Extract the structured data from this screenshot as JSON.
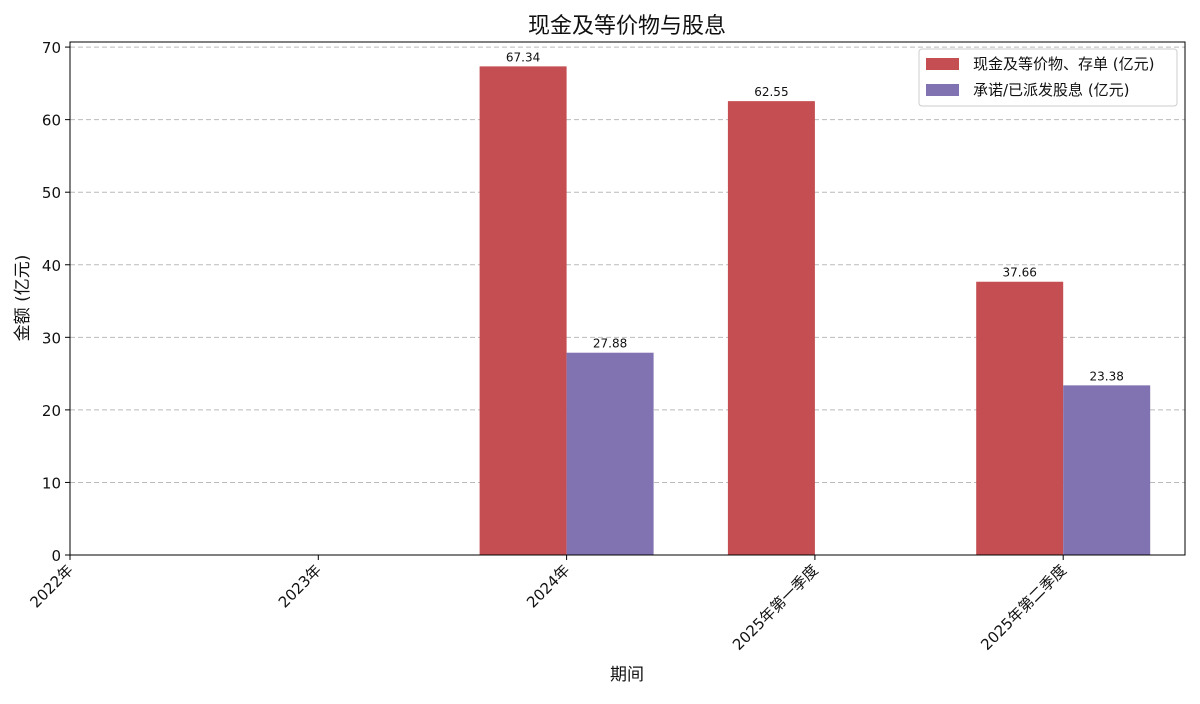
{
  "chart_data": {
    "type": "bar",
    "title": "现金及等价物与股息",
    "xlabel": "期间",
    "ylabel": "金额 (亿元)",
    "categories": [
      "2022年",
      "2023年",
      "2024年",
      "2025年第一季度",
      "2025年第二季度"
    ],
    "series": [
      {
        "name": "现金及等价物、存单 (亿元)",
        "color": "#c44e52",
        "values": [
          null,
          null,
          67.34,
          62.55,
          37.66
        ]
      },
      {
        "name": "承诺/已派发股息 (亿元)",
        "color": "#8172b2",
        "values": [
          null,
          null,
          27.88,
          null,
          23.38
        ]
      }
    ],
    "ylim": [
      0,
      70.7
    ],
    "yticks": [
      0,
      10,
      20,
      30,
      40,
      50,
      60,
      70
    ],
    "grid": "y-dashed",
    "legend": "top-right"
  }
}
